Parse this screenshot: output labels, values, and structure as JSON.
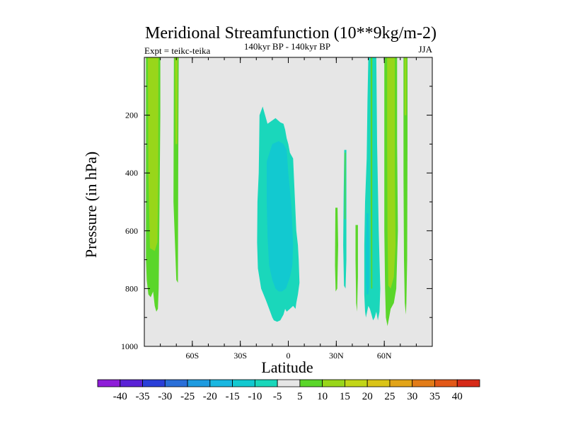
{
  "chart_data": {
    "type": "contour",
    "title": "Meridional Streamfunction (10**9kg/m-2)",
    "subtitle_left": "Expt = teikc-teika",
    "subtitle_center": "140kyr BP - 140kyr BP",
    "subtitle_right": "JJA",
    "xlabel": "Latitude",
    "ylabel": "Pressure (in hPa)",
    "x_unit": "degrees latitude",
    "xlim": [
      -90,
      90
    ],
    "ylim": [
      1000,
      0
    ],
    "y_reversed": true,
    "x_ticks": [
      {
        "value": -60,
        "label": "60S"
      },
      {
        "value": -30,
        "label": "30S"
      },
      {
        "value": 0,
        "label": "0"
      },
      {
        "value": 30,
        "label": "30N"
      },
      {
        "value": 60,
        "label": "60N"
      }
    ],
    "y_ticks": [
      {
        "value": 200,
        "label": "200"
      },
      {
        "value": 400,
        "label": "400"
      },
      {
        "value": 600,
        "label": "600"
      },
      {
        "value": 800,
        "label": "800"
      },
      {
        "value": 1000,
        "label": "1000"
      }
    ],
    "background_color": "#e6e6e6",
    "contour_levels": [
      -40,
      -35,
      -30,
      -25,
      -20,
      -15,
      -10,
      -5,
      5,
      10,
      15,
      20,
      25,
      30,
      35,
      40
    ],
    "colorbar_colors": [
      "#8e1dd8",
      "#5a22d6",
      "#2a3fd8",
      "#2a6fd8",
      "#1e9be0",
      "#19b7e0",
      "#12c9d0",
      "#1ad7bb",
      "#e6e6e6",
      "#5ad62a",
      "#98d61a",
      "#c2d618",
      "#dac418",
      "#e2a418",
      "#e27c18",
      "#e25818",
      "#d62a18"
    ],
    "regions": [
      {
        "name": "south-pole-band-outer",
        "level": 5,
        "color": "#5ad62a",
        "points": [
          [
            -89,
            0
          ],
          [
            -80,
            0
          ],
          [
            -80,
            200
          ],
          [
            -80.5,
            500
          ],
          [
            -81,
            800
          ],
          [
            -81.5,
            870
          ],
          [
            -82.5,
            880
          ],
          [
            -83.5,
            860
          ],
          [
            -84.5,
            810
          ],
          [
            -86,
            830
          ],
          [
            -87.5,
            820
          ],
          [
            -88.5,
            770
          ],
          [
            -89,
            700
          ]
        ]
      },
      {
        "name": "south-pole-band-inner",
        "level": 10,
        "color": "#98d61a",
        "points": [
          [
            -87.8,
            0
          ],
          [
            -81.2,
            0
          ],
          [
            -81.3,
            400
          ],
          [
            -81.8,
            640
          ],
          [
            -83.5,
            670
          ],
          [
            -86.5,
            660
          ],
          [
            -87.5,
            400
          ]
        ]
      },
      {
        "name": "south-midlat-band-outer",
        "level": 5,
        "color": "#5ad62a",
        "points": [
          [
            -71.5,
            0
          ],
          [
            -68.5,
            0
          ],
          [
            -68.8,
            400
          ],
          [
            -69,
            780
          ],
          [
            -70,
            770
          ],
          [
            -71.8,
            500
          ]
        ]
      },
      {
        "name": "south-midlat-band-inner",
        "level": 10,
        "color": "#98d61a",
        "points": [
          [
            -70.8,
            0
          ],
          [
            -69.2,
            0
          ],
          [
            -69.4,
            300
          ],
          [
            -70.5,
            300
          ]
        ]
      },
      {
        "name": "equatorial-cell-outer",
        "level": -5,
        "color": "#1ad7bb",
        "points": [
          [
            -18,
            200
          ],
          [
            -16,
            170
          ],
          [
            -13,
            230
          ],
          [
            -8,
            210
          ],
          [
            -5,
            225
          ],
          [
            -3,
            230
          ],
          [
            -2,
            250
          ],
          [
            -1,
            280
          ],
          [
            0,
            300
          ],
          [
            1,
            330
          ],
          [
            3,
            350
          ],
          [
            5,
            600
          ],
          [
            6,
            650
          ],
          [
            6.5,
            700
          ],
          [
            7,
            780
          ],
          [
            6,
            820
          ],
          [
            5,
            850
          ],
          [
            4.5,
            870
          ],
          [
            3,
            860
          ],
          [
            1,
            870
          ],
          [
            -1,
            880
          ],
          [
            -2,
            870
          ],
          [
            -3,
            890
          ],
          [
            -5,
            910
          ],
          [
            -7,
            915
          ],
          [
            -9,
            910
          ],
          [
            -10,
            900
          ],
          [
            -12,
            870
          ],
          [
            -14,
            840
          ],
          [
            -17,
            800
          ],
          [
            -19,
            730
          ],
          [
            -19.5,
            640
          ],
          [
            -19.3,
            500
          ],
          [
            -18.5,
            400
          ],
          [
            -18.2,
            300
          ]
        ]
      },
      {
        "name": "equatorial-cell-inner",
        "level": -10,
        "color": "#12c9d0",
        "points": [
          [
            -13.5,
            360
          ],
          [
            -10,
            300
          ],
          [
            -6,
            290
          ],
          [
            -3,
            300
          ],
          [
            -1,
            320
          ],
          [
            0,
            400
          ],
          [
            2,
            520
          ],
          [
            3,
            650
          ],
          [
            2.5,
            720
          ],
          [
            1,
            760
          ],
          [
            -1.5,
            800
          ],
          [
            -4,
            810
          ],
          [
            -6,
            810
          ],
          [
            -8,
            800
          ],
          [
            -10,
            770
          ],
          [
            -12,
            720
          ],
          [
            -13,
            620
          ],
          [
            -13.5,
            500
          ]
        ]
      },
      {
        "name": "nh-filament-a",
        "level": 5,
        "color": "#5ad62a",
        "points": [
          [
            29.4,
            520
          ],
          [
            30.8,
            520
          ],
          [
            31.2,
            650
          ],
          [
            30.6,
            800
          ],
          [
            29.6,
            810
          ],
          [
            29.2,
            720
          ]
        ]
      },
      {
        "name": "nh-filament-b-outer",
        "level": -5,
        "color": "#1ad7bb",
        "points": [
          [
            35,
            320
          ],
          [
            36.3,
            320
          ],
          [
            36.3,
            700
          ],
          [
            35.8,
            800
          ],
          [
            34.8,
            790
          ],
          [
            34.3,
            650
          ],
          [
            34.6,
            480
          ]
        ]
      },
      {
        "name": "nh-filament-b-inner",
        "level": 5,
        "color": "#5ad62a",
        "points": [
          [
            35.2,
            330
          ],
          [
            35.8,
            330
          ],
          [
            35.7,
            560
          ],
          [
            35.2,
            560
          ]
        ]
      },
      {
        "name": "nh-filament-c",
        "level": 5,
        "color": "#5ad62a",
        "points": [
          [
            42,
            580
          ],
          [
            43.5,
            580
          ],
          [
            43.5,
            760
          ],
          [
            43,
            880
          ],
          [
            42.4,
            850
          ],
          [
            42,
            700
          ]
        ]
      },
      {
        "name": "north-midlat-band-outer",
        "level": -5,
        "color": "#1ad7bb",
        "points": [
          [
            50,
            0
          ],
          [
            55,
            0
          ],
          [
            55.5,
            300
          ],
          [
            56.5,
            600
          ],
          [
            57.5,
            800
          ],
          [
            57,
            880
          ],
          [
            56,
            910
          ],
          [
            55,
            880
          ],
          [
            54,
            900
          ],
          [
            53,
            910
          ],
          [
            52,
            890
          ],
          [
            51,
            870
          ],
          [
            50,
            860
          ],
          [
            48.5,
            900
          ],
          [
            48,
            880
          ],
          [
            47.5,
            820
          ],
          [
            47.5,
            650
          ],
          [
            48,
            500
          ],
          [
            49,
            350
          ],
          [
            49.5,
            150
          ]
        ]
      },
      {
        "name": "north-midlat-band-inner",
        "level": -10,
        "color": "#12c9d0",
        "points": [
          [
            49,
            540
          ],
          [
            50,
            540
          ],
          [
            50.5,
            650
          ],
          [
            50.5,
            790
          ],
          [
            50,
            820
          ],
          [
            49,
            820
          ],
          [
            48.5,
            780
          ],
          [
            48.5,
            650
          ]
        ]
      },
      {
        "name": "north-midlat-band-green",
        "level": 5,
        "color": "#5ad62a",
        "points": [
          [
            51.5,
            0
          ],
          [
            52.5,
            0
          ],
          [
            52.5,
            500
          ],
          [
            52.5,
            800
          ],
          [
            51.8,
            800
          ],
          [
            51.5,
            500
          ]
        ]
      },
      {
        "name": "north-polar-band-outer",
        "level": 5,
        "color": "#5ad62a",
        "points": [
          [
            60,
            0
          ],
          [
            68,
            0
          ],
          [
            68,
            300
          ],
          [
            68.5,
            600
          ],
          [
            67.5,
            800
          ],
          [
            66,
            850
          ],
          [
            64,
            870
          ],
          [
            63,
            900
          ],
          [
            62,
            930
          ],
          [
            61,
            900
          ],
          [
            60.5,
            800
          ],
          [
            60,
            600
          ]
        ]
      },
      {
        "name": "north-polar-band-inner",
        "level": 10,
        "color": "#98d61a",
        "points": [
          [
            61.8,
            0
          ],
          [
            66.6,
            0
          ],
          [
            66.6,
            400
          ],
          [
            67,
            650
          ],
          [
            66,
            760
          ],
          [
            64,
            800
          ],
          [
            62.5,
            790
          ],
          [
            62,
            600
          ],
          [
            61.8,
            300
          ]
        ]
      },
      {
        "name": "north-pole-filament-outer",
        "level": 5,
        "color": "#5ad62a",
        "points": [
          [
            72,
            0
          ],
          [
            74.5,
            0
          ],
          [
            74.5,
            300
          ],
          [
            74.3,
            700
          ],
          [
            73.8,
            850
          ],
          [
            73.5,
            890
          ],
          [
            72.8,
            850
          ],
          [
            72.3,
            700
          ],
          [
            72,
            400
          ]
        ]
      },
      {
        "name": "north-pole-filament-inner",
        "level": 10,
        "color": "#98d61a",
        "points": [
          [
            72.6,
            0
          ],
          [
            73.9,
            0
          ],
          [
            73.8,
            200
          ],
          [
            72.7,
            200
          ]
        ]
      }
    ]
  }
}
